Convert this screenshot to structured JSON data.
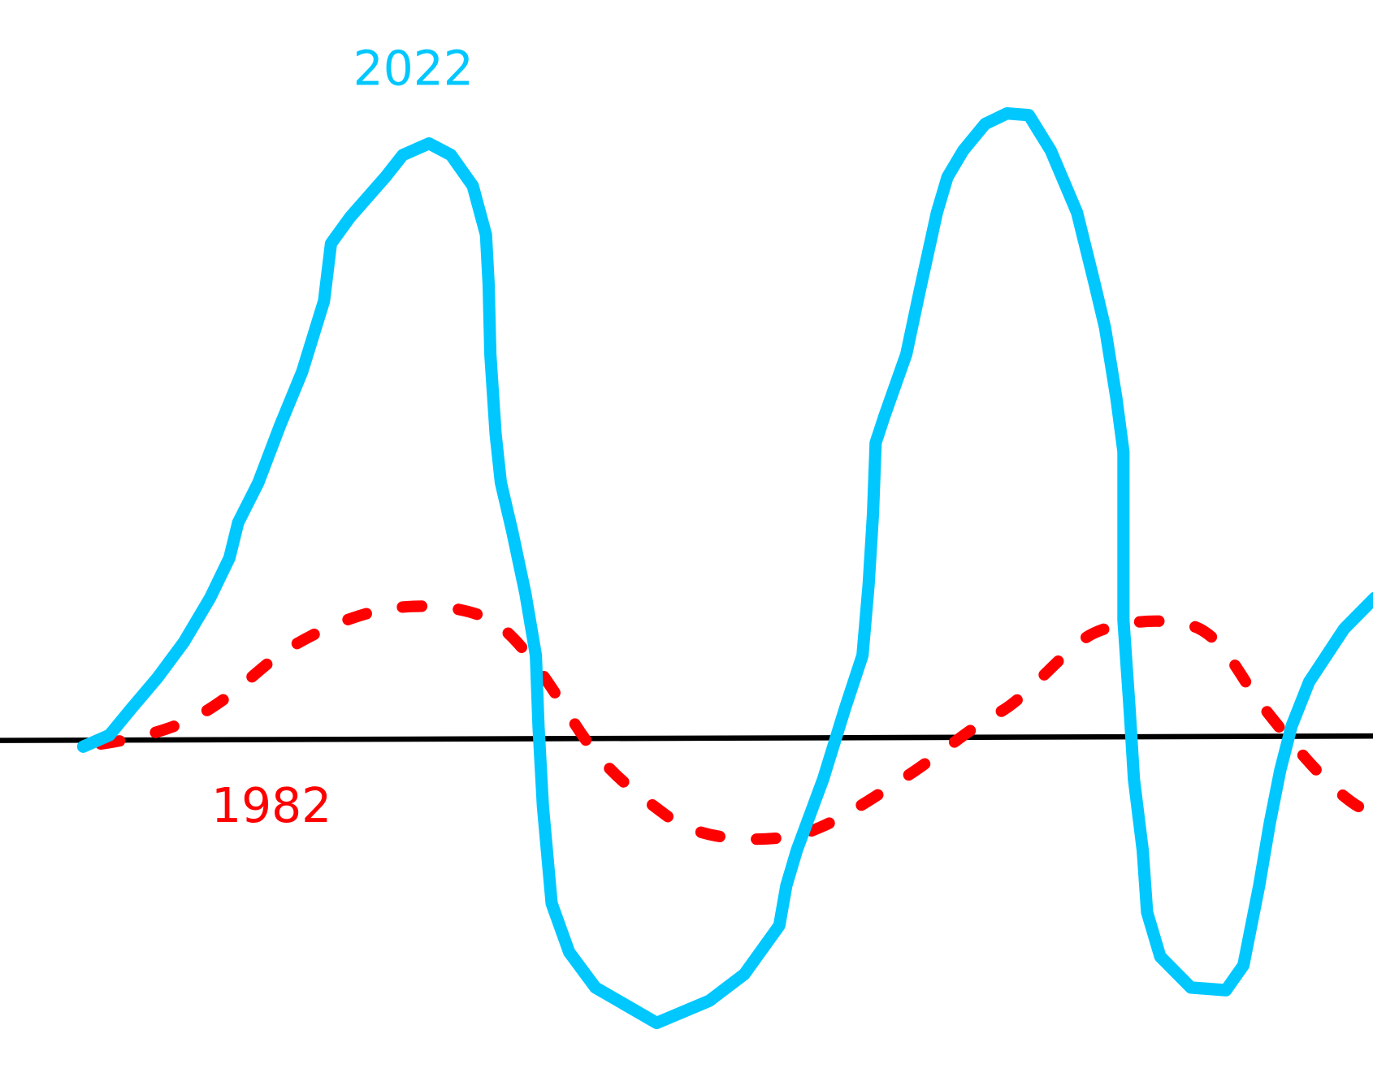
{
  "labels": {
    "top": "2022",
    "bottom": "1982"
  }
}
